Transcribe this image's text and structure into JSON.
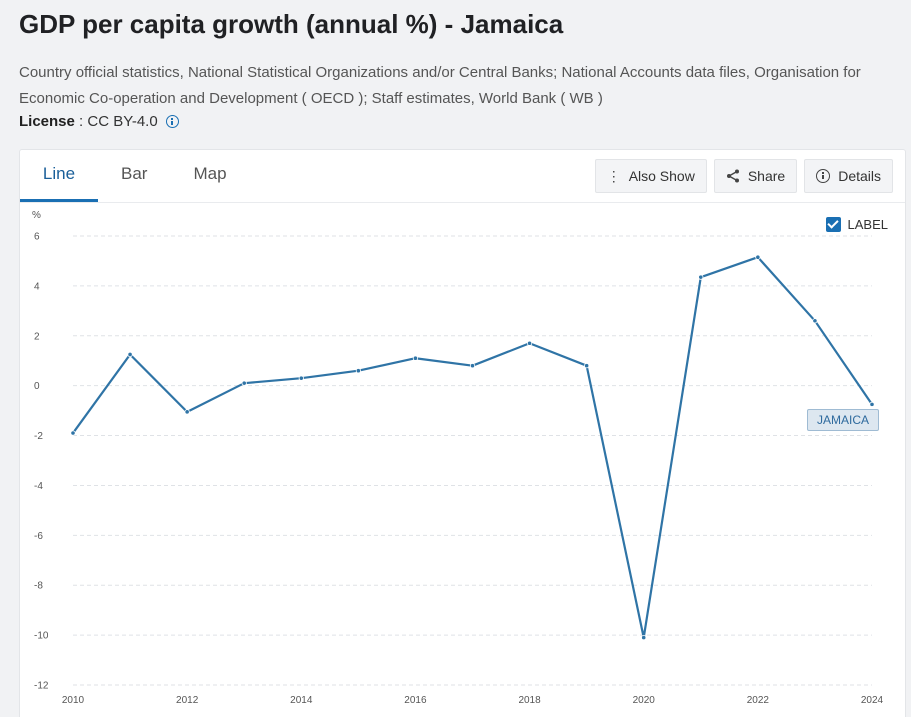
{
  "header": {
    "title": "GDP per capita growth (annual %) - Jamaica",
    "source": "Country official statistics, National Statistical Organizations and/or Central Banks; National Accounts data files, Organisation for Economic Co-operation and Development ( OECD ); Staff estimates, World Bank ( WB )",
    "license_label": "License",
    "license_value": " : CC BY-4.0"
  },
  "tabs": [
    {
      "label": "Line",
      "active": true
    },
    {
      "label": "Bar",
      "active": false
    },
    {
      "label": "Map",
      "active": false
    }
  ],
  "actions": {
    "also_show": "Also Show",
    "share": "Share",
    "details": "Details"
  },
  "label_toggle": {
    "text": "LABEL",
    "checked": true
  },
  "colors": {
    "line": "#2f74a6",
    "accent": "#1a6fb3"
  },
  "chart_data": {
    "type": "line",
    "title": "",
    "xlabel": "",
    "ylabel": "%",
    "ylim": [
      -12,
      6
    ],
    "xlim": [
      2010,
      2024
    ],
    "yticks": [
      6,
      4,
      2,
      0,
      -2,
      -4,
      -6,
      -8,
      -10,
      -12
    ],
    "xticks": [
      2010,
      2012,
      2014,
      2016,
      2018,
      2020,
      2022,
      2024
    ],
    "grid": true,
    "series": [
      {
        "name": "JAMAICA",
        "x": [
          2010,
          2011,
          2012,
          2013,
          2014,
          2015,
          2016,
          2017,
          2018,
          2019,
          2020,
          2021,
          2022,
          2023,
          2024
        ],
        "values": [
          -1.9,
          1.25,
          -1.05,
          0.1,
          0.3,
          0.6,
          1.1,
          0.8,
          1.7,
          0.8,
          -10.1,
          4.35,
          5.15,
          2.6,
          -0.75
        ]
      }
    ]
  }
}
